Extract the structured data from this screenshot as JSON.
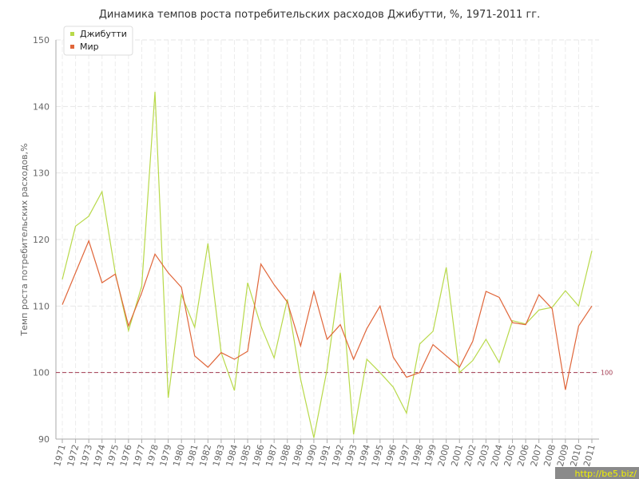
{
  "chart_data": {
    "type": "line",
    "title": "Динамика темпов роста потребительских расходов Джибутти, %, 1971-2011 гг.",
    "y_label": "Темп роста потребительских расходов,%",
    "categories": [
      "1971",
      "1972",
      "1973",
      "1974",
      "1975",
      "1976",
      "1977",
      "1978",
      "1979",
      "1980",
      "1981",
      "1982",
      "1983",
      "1984",
      "1985",
      "1986",
      "1987",
      "1988",
      "1989",
      "1990",
      "1991",
      "1992",
      "1993",
      "1994",
      "1995",
      "1996",
      "1997",
      "1998",
      "1999",
      "2000",
      "2001",
      "2002",
      "2003",
      "2004",
      "2005",
      "2006",
      "2007",
      "2008",
      "2009",
      "2010",
      "2011"
    ],
    "series": [
      {
        "name": "Джибутти",
        "color": "#b8d94a",
        "values": [
          114,
          122,
          123.5,
          127.2,
          115,
          106.3,
          113,
          142.2,
          96.2,
          111.7,
          106.8,
          119.4,
          103,
          97.3,
          113.5,
          107,
          102.2,
          111,
          99,
          90.2,
          100.5,
          115,
          90.7,
          102,
          100,
          97.8,
          93.9,
          104.3,
          106.2,
          115.8,
          100,
          101.8,
          105,
          101.5,
          107.8,
          107.3,
          109.4,
          109.8,
          112.3,
          110,
          118.3
        ]
      },
      {
        "name": "Мир",
        "color": "#e0663a",
        "values": [
          110.2,
          115,
          119.8,
          113.5,
          114.8,
          107,
          112,
          117.8,
          115,
          112.8,
          102.5,
          100.8,
          103,
          102,
          103.2,
          116.3,
          113.2,
          110.6,
          104,
          112.2,
          105,
          107.2,
          102,
          106.6,
          110,
          102.3,
          99.3,
          100,
          104.2,
          102.5,
          100.8,
          104.7,
          112.2,
          111.3,
          107.5,
          107.2,
          111.7,
          109.6,
          97.4,
          107,
          110
        ]
      }
    ],
    "ylim": [
      90,
      150
    ],
    "yticks": [
      90,
      100,
      110,
      120,
      130,
      140,
      150
    ],
    "grid": true,
    "reference_line": 100,
    "reference_color": "#a33a50",
    "legend": "upper-left",
    "watermark": "http://be5.biz/"
  }
}
